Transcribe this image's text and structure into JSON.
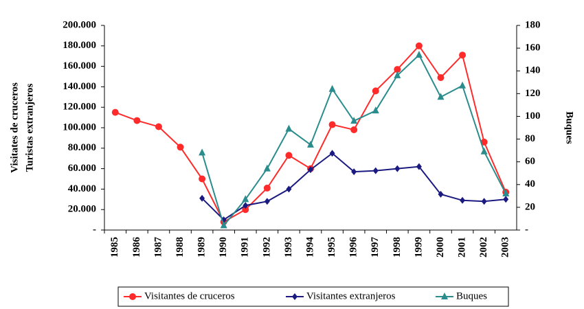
{
  "chart_data": {
    "type": "line",
    "ylabel": [
      "Visitates de cruceros",
      "Turistas extranjeros"
    ],
    "y2label": "Buques",
    "categories": [
      "1985",
      "1986",
      "1987",
      "1988",
      "1989",
      "1990",
      "1991",
      "1992",
      "1993",
      "1994",
      "1995",
      "1996",
      "1997",
      "1998",
      "1999",
      "2000",
      "2001",
      "2002",
      "2003"
    ],
    "series": [
      {
        "name": "Visitantes de cruceros",
        "color": "#ff2a2a",
        "marker": "circle",
        "values": [
          115000,
          107000,
          101000,
          81000,
          50000,
          8000,
          20000,
          41000,
          73000,
          60000,
          103000,
          98000,
          136000,
          157000,
          180000,
          149000,
          171000,
          86000,
          37000
        ]
      },
      {
        "name": "Visitantes extranjeros",
        "color": "#1a1a80",
        "marker": "diamond",
        "values": [
          null,
          null,
          null,
          null,
          31000,
          10000,
          24000,
          28000,
          40000,
          59000,
          75000,
          57000,
          58000,
          60000,
          62000,
          35000,
          29000,
          28000,
          30000
        ]
      },
      {
        "name": "Buques",
        "color": "#2a8c8c",
        "marker": "triangle",
        "axis": "y2",
        "values": [
          null,
          null,
          null,
          null,
          68,
          4,
          27,
          54,
          89,
          75,
          124,
          96,
          105,
          136,
          154,
          117,
          127,
          69,
          32
        ]
      }
    ],
    "ylim": [
      0,
      200000
    ],
    "yticks": [
      {
        "value": 0,
        "label": "-"
      },
      {
        "value": 20000,
        "label": "20.000"
      },
      {
        "value": 40000,
        "label": "40.000"
      },
      {
        "value": 60000,
        "label": "60.000"
      },
      {
        "value": 80000,
        "label": "80.000"
      },
      {
        "value": 100000,
        "label": "100.000"
      },
      {
        "value": 120000,
        "label": "120.000"
      },
      {
        "value": 140000,
        "label": "140.000"
      },
      {
        "value": 160000,
        "label": "160.000"
      },
      {
        "value": 180000,
        "label": "180.000"
      },
      {
        "value": 200000,
        "label": "200.000"
      }
    ],
    "y2lim": [
      0,
      180
    ],
    "y2ticks": [
      {
        "value": 0,
        "label": "-"
      },
      20,
      40,
      60,
      80,
      100,
      120,
      140,
      160,
      180
    ],
    "legend": "bottom"
  }
}
